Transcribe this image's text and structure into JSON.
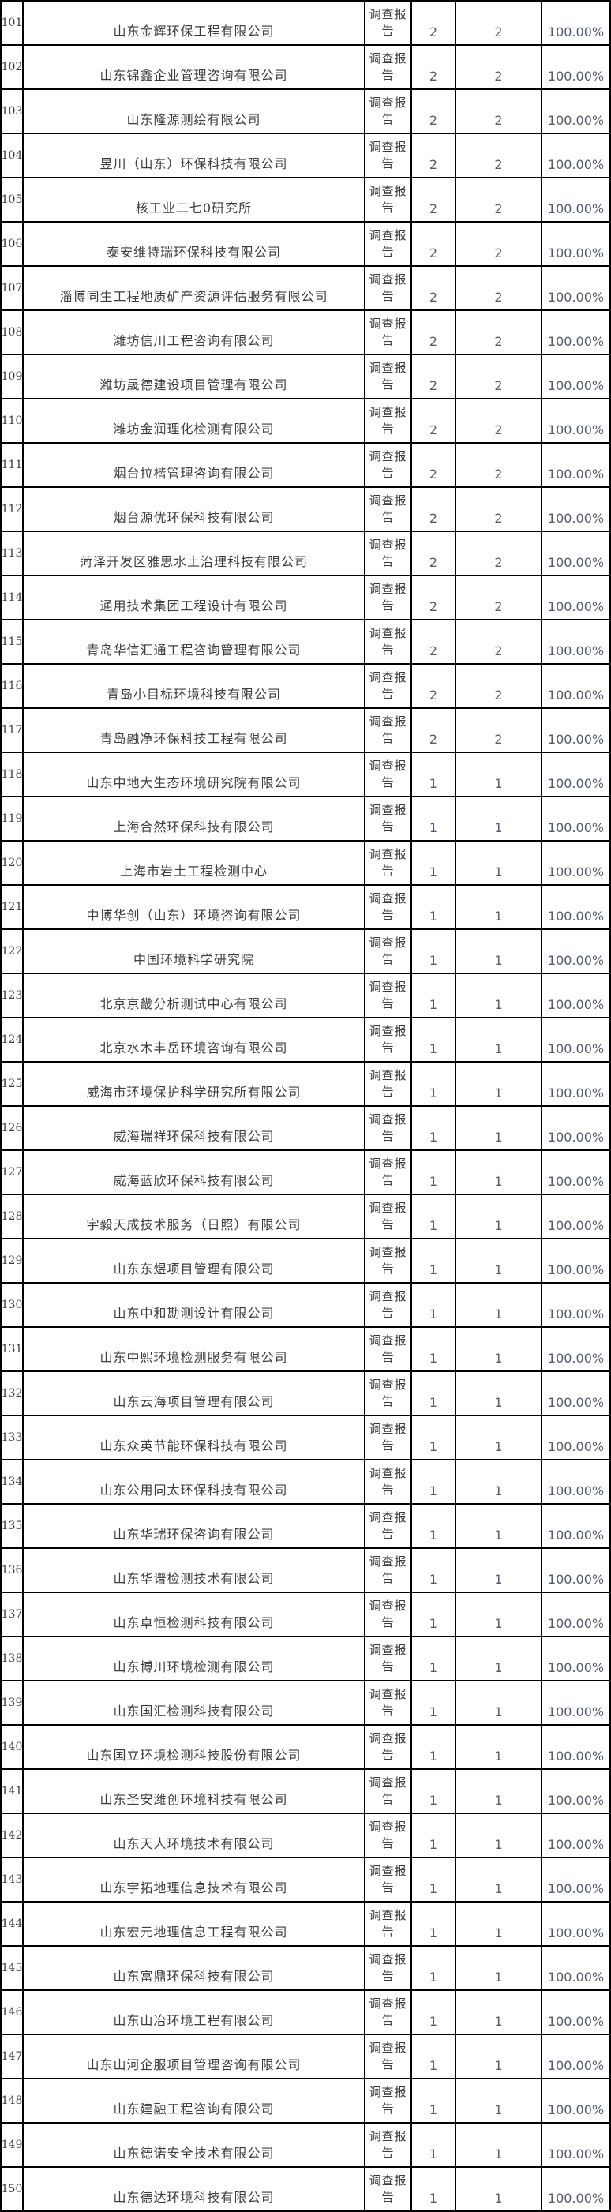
{
  "table": {
    "description_colors": {
      "border": "#000000",
      "cjk_text": "#3d3d3d",
      "numeric_text": "#555d6b",
      "background": "#ffffff"
    },
    "report_type_label": "调查报告",
    "rate_label": "100.00%",
    "rows": [
      {
        "no": "101",
        "company": "山东金辉环保工程有限公司",
        "report": "调查报告",
        "planned": "2",
        "actual": "2",
        "rate": "100.00%"
      },
      {
        "no": "102",
        "company": "山东锦鑫企业管理咨询有限公司",
        "report": "调查报告",
        "planned": "2",
        "actual": "2",
        "rate": "100.00%"
      },
      {
        "no": "103",
        "company": "山东隆源测绘有限公司",
        "report": "调查报告",
        "planned": "2",
        "actual": "2",
        "rate": "100.00%"
      },
      {
        "no": "104",
        "company": "昱川（山东）环保科技有限公司",
        "report": "调查报告",
        "planned": "2",
        "actual": "2",
        "rate": "100.00%"
      },
      {
        "no": "105",
        "company": "核工业二七0研究所",
        "report": "调查报告",
        "planned": "2",
        "actual": "2",
        "rate": "100.00%"
      },
      {
        "no": "106",
        "company": "泰安维特瑞环保科技有限公司",
        "report": "调查报告",
        "planned": "2",
        "actual": "2",
        "rate": "100.00%"
      },
      {
        "no": "107",
        "company": "淄博同生工程地质矿产资源评估服务有限公司",
        "report": "调查报告",
        "planned": "2",
        "actual": "2",
        "rate": "100.00%"
      },
      {
        "no": "108",
        "company": "潍坊信川工程咨询有限公司",
        "report": "调查报告",
        "planned": "2",
        "actual": "2",
        "rate": "100.00%"
      },
      {
        "no": "109",
        "company": "潍坊晟德建设项目管理有限公司",
        "report": "调查报告",
        "planned": "2",
        "actual": "2",
        "rate": "100.00%"
      },
      {
        "no": "110",
        "company": "潍坊金润理化检测有限公司",
        "report": "调查报告",
        "planned": "2",
        "actual": "2",
        "rate": "100.00%"
      },
      {
        "no": "111",
        "company": "烟台拉楷管理咨询有限公司",
        "report": "调查报告",
        "planned": "2",
        "actual": "2",
        "rate": "100.00%"
      },
      {
        "no": "112",
        "company": "烟台源优环保科技有限公司",
        "report": "调查报告",
        "planned": "2",
        "actual": "2",
        "rate": "100.00%"
      },
      {
        "no": "113",
        "company": "菏泽开发区雅思水土治理科技有限公司",
        "report": "调查报告",
        "planned": "2",
        "actual": "2",
        "rate": "100.00%"
      },
      {
        "no": "114",
        "company": "通用技术集团工程设计有限公司",
        "report": "调查报告",
        "planned": "2",
        "actual": "2",
        "rate": "100.00%"
      },
      {
        "no": "115",
        "company": "青岛华信汇通工程咨询管理有限公司",
        "report": "调查报告",
        "planned": "2",
        "actual": "2",
        "rate": "100.00%"
      },
      {
        "no": "116",
        "company": "青岛小目标环境科技有限公司",
        "report": "调查报告",
        "planned": "2",
        "actual": "2",
        "rate": "100.00%"
      },
      {
        "no": "117",
        "company": "青岛融净环保科技工程有限公司",
        "report": "调查报告",
        "planned": "2",
        "actual": "2",
        "rate": "100.00%"
      },
      {
        "no": "118",
        "company": "山东中地大生态环境研究院有限公司",
        "report": "调查报告",
        "planned": "1",
        "actual": "1",
        "rate": "100.00%"
      },
      {
        "no": "119",
        "company": "上海合然环保科技有限公司",
        "report": "调查报告",
        "planned": "1",
        "actual": "1",
        "rate": "100.00%"
      },
      {
        "no": "120",
        "company": "上海市岩土工程检测中心",
        "report": "调查报告",
        "planned": "1",
        "actual": "1",
        "rate": "100.00%"
      },
      {
        "no": "121",
        "company": "中博华创（山东）环境咨询有限公司",
        "report": "调查报告",
        "planned": "1",
        "actual": "1",
        "rate": "100.00%"
      },
      {
        "no": "122",
        "company": "中国环境科学研究院",
        "report": "调查报告",
        "planned": "1",
        "actual": "1",
        "rate": "100.00%"
      },
      {
        "no": "123",
        "company": "北京京畿分析测试中心有限公司",
        "report": "调查报告",
        "planned": "1",
        "actual": "1",
        "rate": "100.00%"
      },
      {
        "no": "124",
        "company": "北京水木丰岳环境咨询有限公司",
        "report": "调查报告",
        "planned": "1",
        "actual": "1",
        "rate": "100.00%"
      },
      {
        "no": "125",
        "company": "威海市环境保护科学研究所有限公司",
        "report": "调查报告",
        "planned": "1",
        "actual": "1",
        "rate": "100.00%"
      },
      {
        "no": "126",
        "company": "威海瑞祥环保科技有限公司",
        "report": "调查报告",
        "planned": "1",
        "actual": "1",
        "rate": "100.00%"
      },
      {
        "no": "127",
        "company": "威海蓝欣环保科技有限公司",
        "report": "调查报告",
        "planned": "1",
        "actual": "1",
        "rate": "100.00%"
      },
      {
        "no": "128",
        "company": "宇毅天成技术服务（日照）有限公司",
        "report": "调查报告",
        "planned": "1",
        "actual": "1",
        "rate": "100.00%"
      },
      {
        "no": "129",
        "company": "山东东煜项目管理有限公司",
        "report": "调查报告",
        "planned": "1",
        "actual": "1",
        "rate": "100.00%"
      },
      {
        "no": "130",
        "company": "山东中和勘测设计有限公司",
        "report": "调查报告",
        "planned": "1",
        "actual": "1",
        "rate": "100.00%"
      },
      {
        "no": "131",
        "company": "山东中熙环境检测服务有限公司",
        "report": "调查报告",
        "planned": "1",
        "actual": "1",
        "rate": "100.00%"
      },
      {
        "no": "132",
        "company": "山东云海项目管理有限公司",
        "report": "调查报告",
        "planned": "1",
        "actual": "1",
        "rate": "100.00%"
      },
      {
        "no": "133",
        "company": "山东众英节能环保科技有限公司",
        "report": "调查报告",
        "planned": "1",
        "actual": "1",
        "rate": "100.00%"
      },
      {
        "no": "134",
        "company": "山东公用同太环保科技有限公司",
        "report": "调查报告",
        "planned": "1",
        "actual": "1",
        "rate": "100.00%"
      },
      {
        "no": "135",
        "company": "山东华瑞环保咨询有限公司",
        "report": "调查报告",
        "planned": "1",
        "actual": "1",
        "rate": "100.00%"
      },
      {
        "no": "136",
        "company": "山东华谱检测技术有限公司",
        "report": "调查报告",
        "planned": "1",
        "actual": "1",
        "rate": "100.00%"
      },
      {
        "no": "137",
        "company": "山东卓恒检测科技有限公司",
        "report": "调查报告",
        "planned": "1",
        "actual": "1",
        "rate": "100.00%"
      },
      {
        "no": "138",
        "company": "山东博川环境检测有限公司",
        "report": "调查报告",
        "planned": "1",
        "actual": "1",
        "rate": "100.00%"
      },
      {
        "no": "139",
        "company": "山东国汇检测科技有限公司",
        "report": "调查报告",
        "planned": "1",
        "actual": "1",
        "rate": "100.00%"
      },
      {
        "no": "140",
        "company": "山东国立环境检测科技股份有限公司",
        "report": "调查报告",
        "planned": "1",
        "actual": "1",
        "rate": "100.00%"
      },
      {
        "no": "141",
        "company": "山东圣安潍创环境科技有限公司",
        "report": "调查报告",
        "planned": "1",
        "actual": "1",
        "rate": "100.00%"
      },
      {
        "no": "142",
        "company": "山东天人环境技术有限公司",
        "report": "调查报告",
        "planned": "1",
        "actual": "1",
        "rate": "100.00%"
      },
      {
        "no": "143",
        "company": "山东宇拓地理信息技术有限公司",
        "report": "调查报告",
        "planned": "1",
        "actual": "1",
        "rate": "100.00%"
      },
      {
        "no": "144",
        "company": "山东宏元地理信息工程有限公司",
        "report": "调查报告",
        "planned": "1",
        "actual": "1",
        "rate": "100.00%"
      },
      {
        "no": "145",
        "company": "山东富鼎环保科技有限公司",
        "report": "调查报告",
        "planned": "1",
        "actual": "1",
        "rate": "100.00%"
      },
      {
        "no": "146",
        "company": "山东山冶环境工程有限公司",
        "report": "调查报告",
        "planned": "1",
        "actual": "1",
        "rate": "100.00%"
      },
      {
        "no": "147",
        "company": "山东山河企服项目管理咨询有限公司",
        "report": "调查报告",
        "planned": "1",
        "actual": "1",
        "rate": "100.00%"
      },
      {
        "no": "148",
        "company": "山东建融工程咨询有限公司",
        "report": "调查报告",
        "planned": "1",
        "actual": "1",
        "rate": "100.00%"
      },
      {
        "no": "149",
        "company": "山东德诺安全技术有限公司",
        "report": "调查报告",
        "planned": "1",
        "actual": "1",
        "rate": "100.00%"
      },
      {
        "no": "150",
        "company": "山东德达环境科技有限公司",
        "report": "调查报告",
        "planned": "1",
        "actual": "1",
        "rate": "100.00%"
      }
    ]
  }
}
